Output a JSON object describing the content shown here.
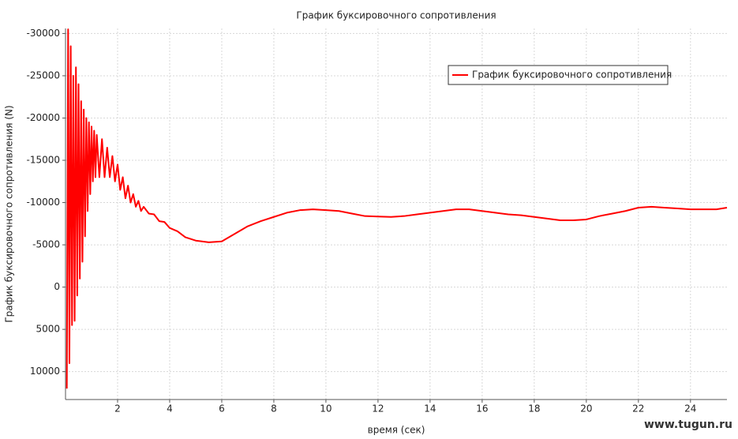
{
  "chart_data": {
    "type": "line",
    "title": "График буксировочного сопротивления",
    "x_label": "время (сек)",
    "y_label": "График буксировочного сопротивления (N)",
    "watermark": "www.tugun.ru",
    "legend": "upper right",
    "grid": true,
    "xlim": [
      0,
      25.4
    ],
    "xticks": [
      2,
      4,
      6,
      8,
      10,
      12,
      14,
      16,
      18,
      20,
      22,
      24
    ],
    "ylim": [
      13300,
      -30600
    ],
    "yticks": [
      -30000,
      -25000,
      -20000,
      -15000,
      -10000,
      -5000,
      0,
      5000,
      10000
    ],
    "series": [
      {
        "name": "График буксировочного сопротивления",
        "color": "#ff0000",
        "x": [
          0.05,
          0.1,
          0.15,
          0.2,
          0.25,
          0.3,
          0.35,
          0.4,
          0.45,
          0.5,
          0.55,
          0.6,
          0.65,
          0.7,
          0.75,
          0.8,
          0.85,
          0.9,
          0.95,
          1.0,
          1.05,
          1.1,
          1.15,
          1.2,
          1.3,
          1.4,
          1.5,
          1.6,
          1.7,
          1.8,
          1.9,
          2.0,
          2.1,
          2.2,
          2.3,
          2.4,
          2.5,
          2.6,
          2.7,
          2.8,
          2.9,
          3.0,
          3.2,
          3.4,
          3.6,
          3.8,
          4.0,
          4.3,
          4.6,
          5.0,
          5.5,
          6.0,
          6.5,
          7.0,
          7.5,
          8.0,
          8.5,
          9.0,
          9.5,
          10,
          10.5,
          11,
          11.5,
          12,
          12.5,
          13,
          13.5,
          14,
          14.5,
          15,
          15.5,
          16,
          16.5,
          17,
          17.5,
          18,
          18.5,
          19,
          19.5,
          20,
          20.5,
          21,
          21.5,
          22,
          22.5,
          23,
          23.5,
          24,
          24.5,
          25,
          25.4
        ],
        "values": [
          12000,
          -30500,
          9000,
          -28500,
          4500,
          -25000,
          4000,
          -26000,
          1000,
          -24000,
          -1000,
          -22000,
          -3000,
          -21000,
          -6000,
          -20000,
          -9000,
          -19500,
          -11000,
          -19000,
          -12500,
          -18500,
          -13000,
          -18000,
          -13000,
          -17500,
          -13000,
          -16500,
          -13000,
          -15500,
          -12500,
          -14500,
          -11500,
          -13000,
          -10500,
          -12000,
          -10000,
          -11000,
          -9500,
          -10200,
          -9000,
          -9500,
          -8700,
          -8600,
          -7800,
          -7700,
          -7000,
          -6600,
          -5900,
          -5500,
          -5300,
          -5400,
          -6300,
          -7200,
          -7800,
          -8300,
          -8800,
          -9100,
          -9200,
          -9100,
          -9000,
          -8700,
          -8400,
          -8350,
          -8300,
          -8400,
          -8600,
          -8800,
          -9000,
          -9200,
          -9200,
          -9000,
          -8800,
          -8600,
          -8500,
          -8300,
          -8100,
          -7900,
          -7900,
          -8000,
          -8400,
          -8700,
          -9000,
          -9400,
          -9500,
          -9400,
          -9300,
          -9200,
          -9200,
          -9200,
          -9400
        ]
      }
    ]
  }
}
